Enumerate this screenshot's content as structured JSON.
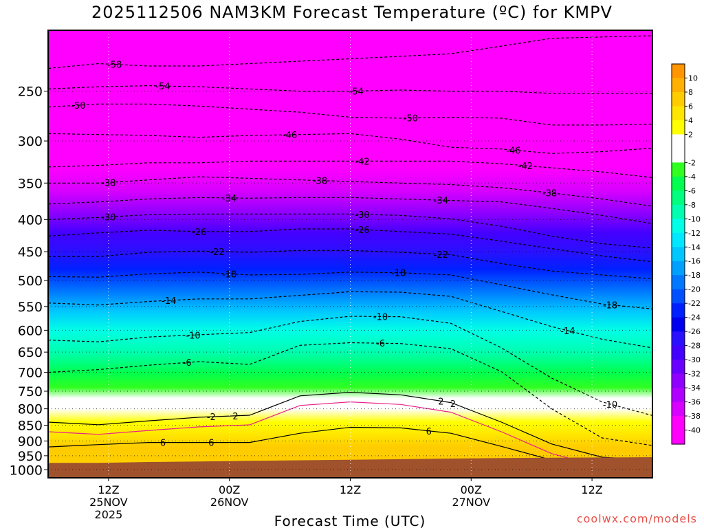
{
  "chart_data": {
    "type": "heatmap",
    "title": "2025112506 NAM3KM Forecast Temperature (ºC) for KMPV",
    "xlabel": "Forecast Time (UTC)",
    "ylabel": "",
    "y_ticks": [
      "250",
      "300",
      "350",
      "400",
      "450",
      "500",
      "550",
      "600",
      "650",
      "700",
      "750",
      "800",
      "850",
      "900",
      "950",
      "1000"
    ],
    "y_range_hpa": [
      200,
      1030
    ],
    "x_range_hours": [
      6,
      66
    ],
    "x_ticks": [
      {
        "hour": 12,
        "lines": [
          "12Z",
          "25NOV",
          "2025"
        ]
      },
      {
        "hour": 24,
        "lines": [
          "00Z",
          "26NOV"
        ]
      },
      {
        "hour": 36,
        "lines": [
          "12Z"
        ]
      },
      {
        "hour": 48,
        "lines": [
          "00Z",
          "27NOV"
        ]
      },
      {
        "hour": 60,
        "lines": [
          "12Z"
        ]
      }
    ],
    "colorbar": {
      "min": -42,
      "max": 12,
      "step": 2,
      "labels": [
        "10",
        "8",
        "6",
        "4",
        "2",
        "-2",
        "-4",
        "-6",
        "-8",
        "-10",
        "-12",
        "-14",
        "-16",
        "-18",
        "-20",
        "-22",
        "-24",
        "-26",
        "-28",
        "-30",
        "-32",
        "-34",
        "-36",
        "-38",
        "-40"
      ]
    },
    "isotherms": [
      {
        "value": -58,
        "y": [
          230,
          226,
          228,
          228,
          226,
          224,
          222,
          220,
          218,
          212,
          206,
          205,
          204
        ]
      },
      {
        "value": -54,
        "y": [
          248,
          246,
          245,
          246,
          248,
          250,
          250,
          249,
          250,
          250,
          252,
          252,
          252
        ]
      },
      {
        "value": -50,
        "y": [
          265,
          262,
          262,
          264,
          267,
          270,
          275,
          276,
          275,
          276,
          283,
          283,
          282
        ]
      },
      {
        "value": -46,
        "y": [
          292,
          293,
          294,
          296,
          294,
          293,
          292,
          298,
          307,
          309,
          314,
          312,
          308
        ]
      },
      {
        "value": -42,
        "y": [
          330,
          328,
          325,
          325,
          323,
          323,
          323,
          323,
          323,
          326,
          331,
          336,
          343
        ]
      },
      {
        "value": -38,
        "y": [
          350,
          350,
          346,
          342,
          344,
          346,
          348,
          350,
          352,
          356,
          363,
          371,
          381
        ]
      },
      {
        "value": -34,
        "y": [
          378,
          375,
          371,
          369,
          370,
          369,
          369,
          371,
          373,
          375,
          384,
          394,
          406
        ]
      },
      {
        "value": -30,
        "y": [
          400,
          397,
          393,
          392,
          392,
          392,
          392,
          394,
          399,
          410,
          425,
          437,
          444
        ]
      },
      {
        "value": -26,
        "y": [
          425,
          420,
          416,
          418,
          418,
          414,
          414,
          418,
          422,
          433,
          445,
          457,
          467
        ]
      },
      {
        "value": -22,
        "y": [
          458,
          458,
          451,
          449,
          451,
          448,
          448,
          451,
          455,
          470,
          483,
          490,
          497
        ]
      },
      {
        "value": -18,
        "y": [
          493,
          494,
          488,
          485,
          490,
          489,
          485,
          486,
          490,
          508,
          527,
          545,
          555
        ]
      },
      {
        "value": -14,
        "y": [
          543,
          547,
          540,
          535,
          535,
          528,
          521,
          522,
          530,
          560,
          592,
          620,
          640
        ]
      },
      {
        "value": -10,
        "y": [
          622,
          626,
          615,
          610,
          605,
          581,
          570,
          571,
          585,
          640,
          715,
          780,
          820
        ]
      },
      {
        "value": -6,
        "y": [
          700,
          693,
          682,
          673,
          680,
          634,
          628,
          630,
          642,
          698,
          800,
          890,
          915
        ]
      },
      {
        "value": 2,
        "y": [
          840,
          848,
          836,
          825,
          819,
          763,
          753,
          760,
          782,
          840,
          910,
          955,
          965
        ]
      },
      {
        "value": 6,
        "y": [
          920,
          912,
          905,
          905,
          905,
          875,
          856,
          858,
          875,
          918,
          965,
          985,
          990
        ]
      }
    ],
    "annotations": [
      "-58",
      "-54",
      "-54",
      "-50",
      "-50",
      "-46",
      "-46",
      "-42",
      "-42",
      "-38",
      "-38",
      "-38",
      "-34",
      "-34",
      "-30",
      "-30",
      "-26",
      "-26",
      "-22",
      "-22",
      "-18",
      "-18",
      "-18",
      "-14",
      "-14",
      "-10",
      "-10",
      "-10",
      "-6",
      "-6",
      "-2",
      "2",
      "2",
      "2",
      "6",
      "6",
      "6"
    ],
    "ground_color": "#a0522d"
  },
  "credit": "coolwx.com/models"
}
